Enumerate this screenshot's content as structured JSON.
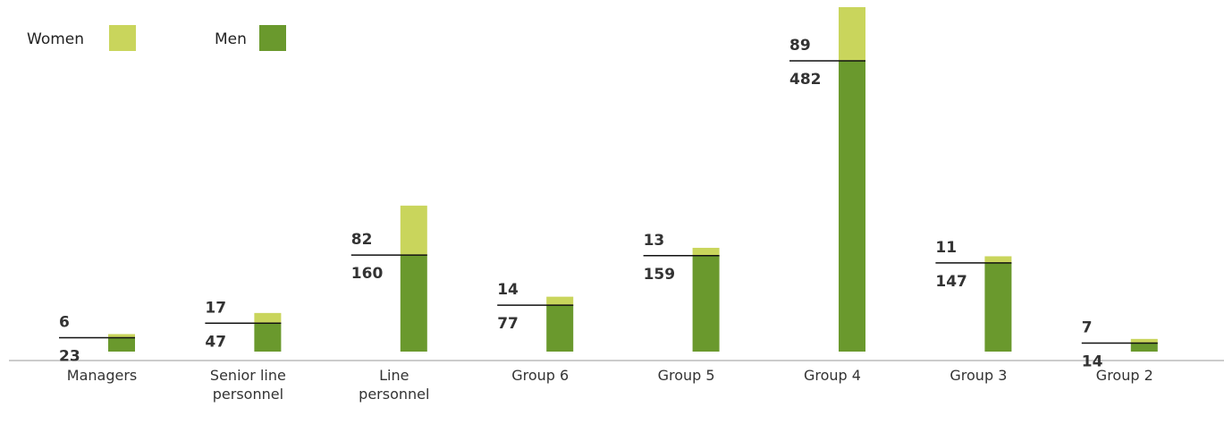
{
  "chart_data": {
    "type": "stacked_bar",
    "categories": [
      "Managers",
      "Senior line personnel",
      "Line personnel",
      "Group 6",
      "Group 5",
      "Group 4",
      "Group 3",
      "Group 2"
    ],
    "series": [
      {
        "name": "Men",
        "color": "#6a992d",
        "values": [
          23,
          47,
          160,
          77,
          159,
          482,
          147,
          14
        ]
      },
      {
        "name": "Women",
        "color": "#c9d55c",
        "values": [
          6,
          17,
          82,
          14,
          13,
          89,
          11,
          7
        ]
      }
    ]
  }
}
